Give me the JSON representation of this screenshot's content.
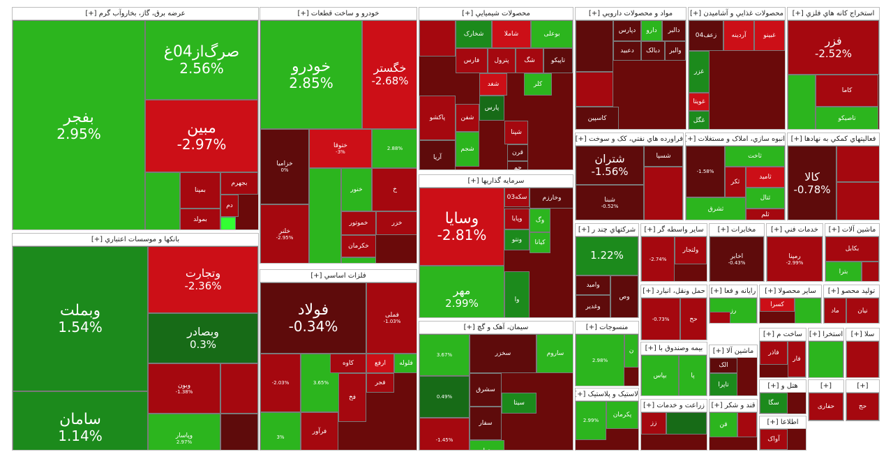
{
  "colors": {
    "green_bright": "#2cb51e",
    "green_mid": "#1c8a1c",
    "green_dark": "#176b17",
    "red_bright": "#cc0f17",
    "red_mid": "#a5080f",
    "red_dark": "#5e0b0b",
    "lime": "#33ff33"
  },
  "sectors": [
    {
      "title": "عرضه برق، گاز، بخاروآب گرم [+]",
      "tiles": [
        {
          "name": "بفجر",
          "pct": "2.95%",
          "c": "green_bright"
        },
        {
          "name": "صرگ‌از04غ",
          "pct": "2.56%",
          "c": "green_bright"
        },
        {
          "name": "مبین",
          "pct": "-2.97%",
          "c": "red_bright"
        },
        {
          "name": "",
          "pct": "",
          "c": "green_bright"
        },
        {
          "name": "بمپنا",
          "pct": "",
          "c": "red_mid"
        },
        {
          "name": "بجهرم",
          "pct": "",
          "c": "red_mid"
        },
        {
          "name": "بمولد",
          "pct": "",
          "c": "red_mid"
        },
        {
          "name": "دم",
          "pct": "",
          "c": "red_mid"
        },
        {
          "name": "",
          "pct": "",
          "c": "lime"
        }
      ]
    },
    {
      "title": "بانکها و موسسات اعتباري [+]",
      "tiles": [
        {
          "name": "وبملت",
          "pct": "1.54%",
          "c": "green_mid"
        },
        {
          "name": "سامان",
          "pct": "1.14%",
          "c": "green_mid"
        },
        {
          "name": "وتجارت",
          "pct": "-2.36%",
          "c": "red_bright"
        },
        {
          "name": "وبصادر",
          "pct": "0.3%",
          "c": "green_dark"
        },
        {
          "name": "وبون",
          "pct": "-1.38%",
          "c": "red_mid"
        },
        {
          "name": "",
          "pct": "",
          "c": "red_mid"
        },
        {
          "name": "وپاسار",
          "pct": "2.97%",
          "c": "green_bright"
        },
        {
          "name": "",
          "pct": "",
          "c": "red_dark"
        }
      ]
    },
    {
      "title": "خودرو و ساخت قطعات [+]",
      "tiles": [
        {
          "name": "خودرو",
          "pct": "2.85%",
          "c": "green_bright"
        },
        {
          "name": "خگستر",
          "pct": "-2.68%",
          "c": "red_bright"
        },
        {
          "name": "خزامیا",
          "pct": "0%",
          "c": "red_dark"
        },
        {
          "name": "ختوقا",
          "pct": "-3%",
          "c": "red_bright"
        },
        {
          "name": "",
          "pct": "2.88%",
          "c": "green_bright"
        },
        {
          "name": "خلنر",
          "pct": "-2.95%",
          "c": "red_mid"
        },
        {
          "name": "خنور",
          "pct": "",
          "c": "green_bright"
        },
        {
          "name": "خ",
          "pct": "",
          "c": "red_mid"
        },
        {
          "name": "خموتور",
          "pct": "",
          "c": "red_mid"
        },
        {
          "name": "خزر",
          "pct": "",
          "c": "red_mid"
        },
        {
          "name": "خکرمان",
          "pct": "",
          "c": "red_mid"
        },
        {
          "name": "خدیزل",
          "pct": "",
          "c": "green_bright"
        },
        {
          "name": "",
          "pct": "",
          "c": "green_bright"
        }
      ]
    },
    {
      "title": "فلزات اساسي [+]",
      "tiles": [
        {
          "name": "فولاد",
          "pct": "-0.34%",
          "c": "red_dark"
        },
        {
          "name": "فملی",
          "pct": "-1.03%",
          "c": "red_mid"
        },
        {
          "name": "",
          "pct": "-2.03%",
          "c": "red_mid"
        },
        {
          "name": "",
          "pct": "3.65%",
          "c": "green_bright"
        },
        {
          "name": "کاوه",
          "pct": "",
          "c": "red_mid"
        },
        {
          "name": "ارفع",
          "pct": "",
          "c": "red_bright"
        },
        {
          "name": "فلوله",
          "pct": "",
          "c": "green_bright"
        },
        {
          "name": "فجر",
          "pct": "",
          "c": "red_mid"
        },
        {
          "name": "فرآور",
          "pct": "",
          "c": "red_mid"
        },
        {
          "name": "فیتنا",
          "pct": "",
          "c": "red_mid"
        },
        {
          "name": "",
          "pct": "3%",
          "c": "green_bright"
        },
        {
          "name": "فخ",
          "pct": "",
          "c": "red_mid"
        }
      ]
    },
    {
      "title": "محصولات شيميايي [+]",
      "tiles": [
        {
          "name": "شخارک",
          "pct": "",
          "c": "green_mid"
        },
        {
          "name": "شاملا",
          "pct": "",
          "c": "red_bright"
        },
        {
          "name": "بوعلی",
          "pct": "",
          "c": "green_bright"
        },
        {
          "name": "",
          "pct": "",
          "c": "red_mid"
        },
        {
          "name": "فارس",
          "pct": "",
          "c": "red_mid"
        },
        {
          "name": "پترول",
          "pct": "",
          "c": "red_mid"
        },
        {
          "name": "شگ",
          "pct": "",
          "c": "red_mid"
        },
        {
          "name": "تاپیکو",
          "pct": "",
          "c": "red_dark"
        },
        {
          "name": "شغد",
          "pct": "",
          "c": "red_bright"
        },
        {
          "name": "کلر",
          "pct": "",
          "c": "green_bright"
        },
        {
          "name": "پاکشو",
          "pct": "",
          "c": "red_mid"
        },
        {
          "name": "شفن",
          "pct": "",
          "c": "red_mid"
        },
        {
          "name": "پارس",
          "pct": "",
          "c": "green_dark"
        },
        {
          "name": "شپنا",
          "pct": "",
          "c": "red_mid"
        },
        {
          "name": "آریا",
          "pct": "",
          "c": "red_dark"
        },
        {
          "name": "شجم",
          "pct": "",
          "c": "green_bright"
        },
        {
          "name": "قرن",
          "pct": "",
          "c": "red_dark"
        },
        {
          "name": "جم",
          "pct": "",
          "c": "red_dark"
        }
      ]
    },
    {
      "title": "سرمایه گذاریها [+]",
      "tiles": [
        {
          "name": "وسایا",
          "pct": "-2.81%",
          "c": "red_bright"
        },
        {
          "name": "سکه03",
          "pct": "",
          "c": "red_mid"
        },
        {
          "name": "وخارزم",
          "pct": "",
          "c": "red_dark"
        },
        {
          "name": "وپایا",
          "pct": "",
          "c": "red_mid"
        },
        {
          "name": "وگ",
          "pct": "",
          "c": "green_bright"
        },
        {
          "name": "کیانا",
          "pct": "",
          "c": "green_bright"
        },
        {
          "name": "ونتو",
          "pct": "",
          "c": "green_mid"
        },
        {
          "name": "مهر",
          "pct": "2.99%",
          "c": "green_bright"
        },
        {
          "name": "وا",
          "pct": "",
          "c": "green_mid"
        }
      ]
    },
    {
      "title": "سيمان، آهک و گچ [+]",
      "tiles": [
        {
          "name": "",
          "pct": "3.67%",
          "c": "green_bright"
        },
        {
          "name": "سخزر",
          "pct": "",
          "c": "red_dark"
        },
        {
          "name": "ساروم",
          "pct": "",
          "c": "green_bright"
        },
        {
          "name": "",
          "pct": "0.49%",
          "c": "green_dark"
        },
        {
          "name": "سشرق",
          "pct": "",
          "c": "red_dark"
        },
        {
          "name": "سیتا",
          "pct": "",
          "c": "green_mid"
        },
        {
          "name": "سفار",
          "pct": "",
          "c": "red_dark"
        },
        {
          "name": "ستران",
          "pct": "",
          "c": "green_bright"
        },
        {
          "name": "",
          "pct": "-1.45%",
          "c": "red_mid"
        }
      ]
    },
    {
      "title": "مواد و محصولات دارويي [+]",
      "tiles": [
        {
          "name": "",
          "pct": "",
          "c": "red_dark"
        },
        {
          "name": "دپارس",
          "pct": "",
          "c": "red_dark"
        },
        {
          "name": "دارو",
          "pct": "",
          "c": "green_bright"
        },
        {
          "name": "دالبر",
          "pct": "",
          "c": "red_dark"
        },
        {
          "name": "دعبید",
          "pct": "",
          "c": "red_dark"
        },
        {
          "name": "دبالک",
          "pct": "",
          "c": "red_dark"
        },
        {
          "name": "والبر",
          "pct": "",
          "c": "red_dark"
        },
        {
          "name": "",
          "pct": "",
          "c": "red_mid"
        },
        {
          "name": "کاسپین",
          "pct": "",
          "c": "red_dark"
        }
      ]
    },
    {
      "title": "محصولات غذايي و آشاميدن [+]",
      "tiles": [
        {
          "name": "زعف04",
          "pct": "",
          "c": "red_dark"
        },
        {
          "name": "آردینه",
          "pct": "",
          "c": "red_bright"
        },
        {
          "name": "غبینو",
          "pct": "",
          "c": "red_bright"
        },
        {
          "name": "غزر",
          "pct": "",
          "c": "green_mid"
        },
        {
          "name": "غویتا",
          "pct": "",
          "c": "red_bright"
        },
        {
          "name": "غگل",
          "pct": "",
          "c": "green_mid"
        }
      ]
    },
    {
      "title": "استخراج کانه هاي فلزي [+]",
      "tiles": [
        {
          "name": "فزر",
          "pct": "-2.52%",
          "c": "red_mid"
        },
        {
          "name": "",
          "pct": "",
          "c": "green_bright"
        },
        {
          "name": "کاما",
          "pct": "",
          "c": "red_mid"
        },
        {
          "name": "تاصیکو",
          "pct": "",
          "c": "green_bright"
        }
      ]
    },
    {
      "title": "فراورده هاي نفتي، کک و سوخت [+]",
      "tiles": [
        {
          "name": "شتران",
          "pct": "-1.56%",
          "c": "red_dark"
        },
        {
          "name": "شسپا",
          "pct": "",
          "c": "red_dark"
        },
        {
          "name": "شبنا",
          "pct": "-0.52%",
          "c": "red_dark"
        },
        {
          "name": "",
          "pct": "",
          "c": "red_mid"
        }
      ]
    },
    {
      "title": "انبوه سازي، املاک و مستغلات [+]",
      "tiles": [
        {
          "name": "",
          "pct": "-1.58%",
          "c": "red_dark"
        },
        {
          "name": "ثاخت",
          "pct": "",
          "c": "green_bright"
        },
        {
          "name": "ثامید",
          "pct": "",
          "c": "red_bright"
        },
        {
          "name": "ثتال",
          "pct": "",
          "c": "green_bright"
        },
        {
          "name": "ثلم",
          "pct": "",
          "c": "red_mid"
        },
        {
          "name": "ثشرق",
          "pct": "",
          "c": "green_bright"
        },
        {
          "name": "ثکر",
          "pct": "",
          "c": "red_mid"
        }
      ]
    },
    {
      "title": "فعالیتهاي کمکي به نهادها [+]",
      "tiles": [
        {
          "name": "کالا",
          "pct": "-0.78%",
          "c": "red_dark"
        },
        {
          "name": "",
          "pct": "",
          "c": "red_mid"
        },
        {
          "name": "",
          "pct": "",
          "c": "red_mid"
        }
      ]
    },
    {
      "title": "شرکتهاي چند ر [+]",
      "tiles": [
        {
          "name": "",
          "pct": "1.22%",
          "c": "green_mid"
        },
        {
          "name": "وامید",
          "pct": "",
          "c": "red_dark"
        },
        {
          "name": "وغدیر",
          "pct": "",
          "c": "red_dark"
        },
        {
          "name": "وص",
          "pct": "",
          "c": "red_dark"
        }
      ]
    },
    {
      "title": "ساير واسطه گر [+]",
      "tiles": [
        {
          "name": "",
          "pct": "-2.74%",
          "c": "red_mid"
        },
        {
          "name": "ولتجار",
          "pct": "",
          "c": "red_mid"
        }
      ]
    },
    {
      "title": "مخابرات [+]",
      "tiles": [
        {
          "name": "اخابر",
          "pct": "-0.43%",
          "c": "red_dark"
        }
      ]
    },
    {
      "title": "خدمات فني [+]",
      "tiles": [
        {
          "name": "رمپنا",
          "pct": "-2.99%",
          "c": "red_mid"
        }
      ]
    },
    {
      "title": "ماشين آلات [+]",
      "tiles": [
        {
          "name": "بکابل",
          "pct": "",
          "c": "red_mid"
        },
        {
          "name": "بترا",
          "pct": "",
          "c": "green_bright"
        },
        {
          "name": "",
          "pct": "",
          "c": "red_mid"
        }
      ]
    },
    {
      "title": "حمل ونقل، انبارد [+]",
      "tiles": [
        {
          "name": "",
          "pct": "-0.73%",
          "c": "red_mid"
        },
        {
          "name": "حح",
          "pct": "",
          "c": "red_mid"
        }
      ]
    },
    {
      "title": "رايانه و فعا [+]",
      "tiles": [
        {
          "name": "رز",
          "pct": "",
          "c": "green_bright"
        },
        {
          "name": "",
          "pct": "",
          "c": "red_mid"
        }
      ]
    },
    {
      "title": "ساير محصولا [+]",
      "tiles": [
        {
          "name": "کسرا",
          "pct": "",
          "c": "red_bright"
        },
        {
          "name": "",
          "pct": "",
          "c": "green_bright"
        }
      ]
    },
    {
      "title": "توليد محصو [+]",
      "tiles": [
        {
          "name": "ماد",
          "pct": "",
          "c": "red_mid"
        },
        {
          "name": "نیان",
          "pct": "",
          "c": "red_mid"
        }
      ]
    },
    {
      "title": "منسوجات [+]",
      "tiles": [
        {
          "name": "",
          "pct": "2.98%",
          "c": "green_bright"
        },
        {
          "name": "ن",
          "pct": "",
          "c": "green_bright"
        }
      ]
    },
    {
      "title": "بيمه وصندوق با [+]",
      "tiles": [
        {
          "name": "بپاس",
          "pct": "",
          "c": "green_bright"
        },
        {
          "name": "پا",
          "pct": "",
          "c": "green_bright"
        }
      ]
    },
    {
      "title": "ماشين آلا [+]",
      "tiles": [
        {
          "name": "تاپرا",
          "pct": "",
          "c": "green_mid"
        },
        {
          "name": "الک",
          "pct": "",
          "c": "red_dark"
        }
      ]
    },
    {
      "title": "ساخت م [+]",
      "tiles": [
        {
          "name": "فاذر",
          "pct": "",
          "c": "red_mid"
        },
        {
          "name": "فار",
          "pct": "",
          "c": "red_mid"
        }
      ]
    },
    {
      "title": "استخرا [+]",
      "tiles": [
        {
          "name": "",
          "pct": "",
          "c": "green_bright"
        }
      ]
    },
    {
      "title": "سلا [+]",
      "tiles": [
        {
          "name": "",
          "pct": "",
          "c": "red_mid"
        }
      ]
    },
    {
      "title": "لاستيک و پلاستيک [+]",
      "tiles": [
        {
          "name": "",
          "pct": "2.99%",
          "c": "green_bright"
        },
        {
          "name": "پکرمان",
          "pct": "",
          "c": "green_bright"
        }
      ]
    },
    {
      "title": "زراعت و خدمات [+]",
      "tiles": [
        {
          "name": "زز",
          "pct": "",
          "c": "red_mid"
        },
        {
          "name": "",
          "pct": "",
          "c": "green_dark"
        }
      ]
    },
    {
      "title": "قند و شکر [+]",
      "tiles": [
        {
          "name": "قن",
          "pct": "",
          "c": "green_bright"
        },
        {
          "name": "",
          "pct": "",
          "c": "red_mid"
        }
      ]
    },
    {
      "title": "هتل و [+]",
      "tiles": [
        {
          "name": "سگا",
          "pct": "",
          "c": "green_mid"
        }
      ]
    },
    {
      "title": "اطلاعا [+]",
      "tiles": [
        {
          "name": "آواک",
          "pct": "",
          "c": "red_mid"
        }
      ]
    },
    {
      "title": "[+]",
      "tiles": [
        {
          "name": "حفاری",
          "pct": "",
          "c": "red_mid"
        }
      ]
    },
    {
      "title": "[+]",
      "tiles": [
        {
          "name": "حج",
          "pct": "",
          "c": "red_mid"
        }
      ]
    },
    {
      "title": "[+]",
      "tiles": [
        {
          "name": "",
          "pct": "",
          "c": "green_bright"
        }
      ]
    }
  ]
}
